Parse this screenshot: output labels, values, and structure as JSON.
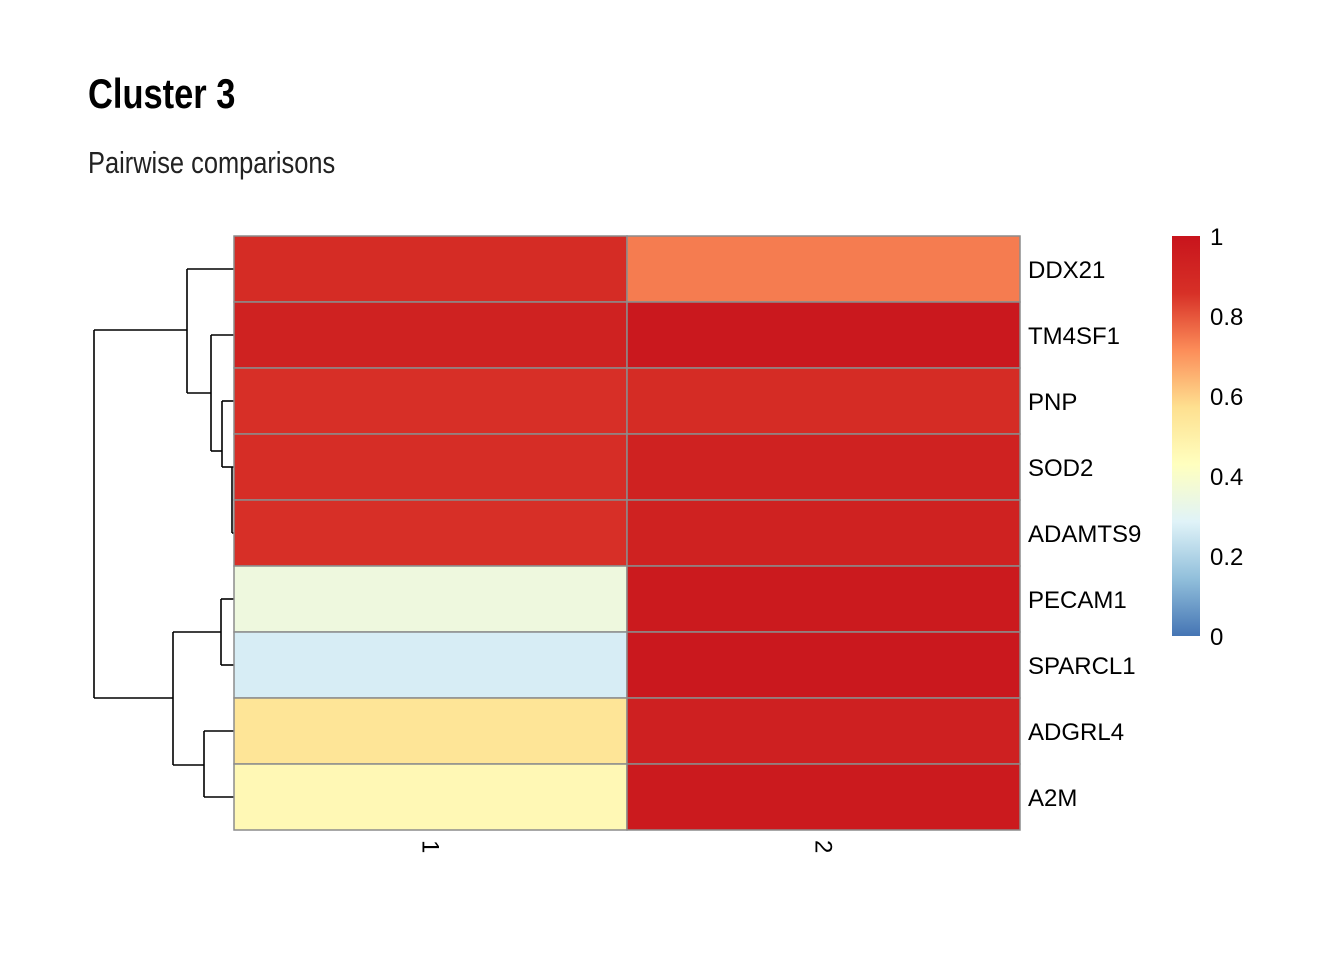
{
  "title": "Cluster 3",
  "subtitle": "Pairwise comparisons",
  "chart_data": {
    "type": "heatmap",
    "title": "Cluster 3",
    "subtitle": "Pairwise comparisons",
    "rows": [
      "DDX21",
      "TM4SF1",
      "PNP",
      "SOD2",
      "ADAMTS9",
      "PECAM1",
      "SPARCL1",
      "ADGRL4",
      "A2M"
    ],
    "columns": [
      "1",
      "2"
    ],
    "values": [
      [
        0.88,
        0.74
      ],
      [
        0.93,
        0.98
      ],
      [
        0.86,
        0.88
      ],
      [
        0.87,
        0.93
      ],
      [
        0.86,
        0.93
      ],
      [
        0.35,
        0.97
      ],
      [
        0.27,
        0.98
      ],
      [
        0.55,
        0.94
      ],
      [
        0.46,
        0.97
      ]
    ],
    "color_scale": {
      "min": 0,
      "max": 1,
      "ticks": [
        "0",
        "0.2",
        "0.4",
        "0.6",
        "0.8",
        "1"
      ],
      "colors": [
        "#4575b4",
        "#91bfdb",
        "#e0f3f8",
        "#ffffbf",
        "#fee090",
        "#fc8d59",
        "#d73027",
        "#c8141c"
      ]
    },
    "row_dendrogram": true,
    "column_labels_rotated": true
  }
}
